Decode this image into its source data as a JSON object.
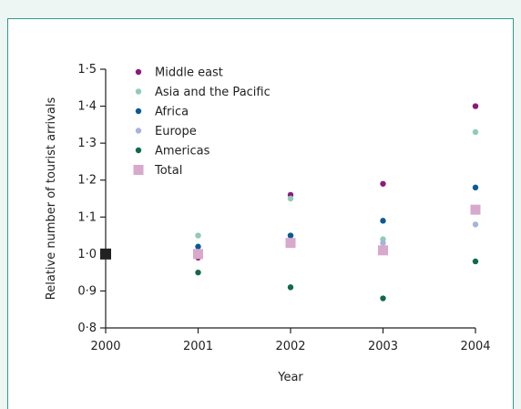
{
  "chart_data": {
    "type": "scatter",
    "title": "",
    "xlabel": "Year",
    "ylabel": "Relative number of tourist arrivals",
    "x": [
      2001,
      2002,
      2003,
      2004
    ],
    "xlim": [
      2000,
      2004
    ],
    "ylim": [
      0.8,
      1.5
    ],
    "xticks": [
      "2000",
      "2001",
      "2002",
      "2003",
      "2004"
    ],
    "yticks": [
      "0·8",
      "0·9",
      "1·0",
      "1·1",
      "1·2",
      "1·3",
      "1·4",
      "1·5"
    ],
    "legend_position": "top-left",
    "grid": false,
    "baseline_marker": {
      "x": 2000,
      "y": 1.0,
      "color": "#222222"
    },
    "series": [
      {
        "name": "Middle east",
        "marker": "circle",
        "color": "#8b1a7d",
        "values": [
          0.99,
          1.16,
          1.19,
          1.4
        ]
      },
      {
        "name": "Asia and the Pacific",
        "marker": "circle",
        "color": "#8fccb4",
        "values": [
          1.05,
          1.15,
          1.04,
          1.33
        ]
      },
      {
        "name": "Africa",
        "marker": "circle",
        "color": "#0b5a95",
        "values": [
          1.02,
          1.05,
          1.09,
          1.18
        ]
      },
      {
        "name": "Europe",
        "marker": "circle",
        "color": "#a8b3db",
        "values": [
          1.0,
          1.03,
          1.03,
          1.08
        ]
      },
      {
        "name": "Americas",
        "marker": "circle",
        "color": "#11694b",
        "values": [
          0.95,
          0.91,
          0.88,
          0.98
        ]
      },
      {
        "name": "Total",
        "marker": "square",
        "color": "#d7a9cc",
        "values": [
          1.0,
          1.03,
          1.01,
          1.12
        ]
      }
    ]
  }
}
